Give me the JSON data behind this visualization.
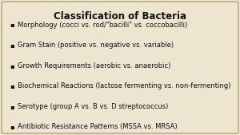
{
  "title": "Classification of Bacteria",
  "bullet_items": [
    "Morphology (cocci vs. rod/\"bacilli\" vs. coccobacilli)",
    "Gram Stain (positive vs. negative vs. variable)",
    "Growth Requirements (aerobic vs. anaerobic)",
    "Biochemical Reactions (lactose fermenting vs. non-fermenting)",
    "Serotype (group A vs. B vs. D streptococcus)",
    "Antibiotic Resistance Patterns (MSSA vs. MRSA)"
  ],
  "background_color": "#ede5d0",
  "border_color": "#b0a070",
  "title_fontsize": 8.5,
  "bullet_fontsize": 6.0,
  "title_color": "#111111",
  "bullet_color": "#111111",
  "bullet_marker": "▪"
}
